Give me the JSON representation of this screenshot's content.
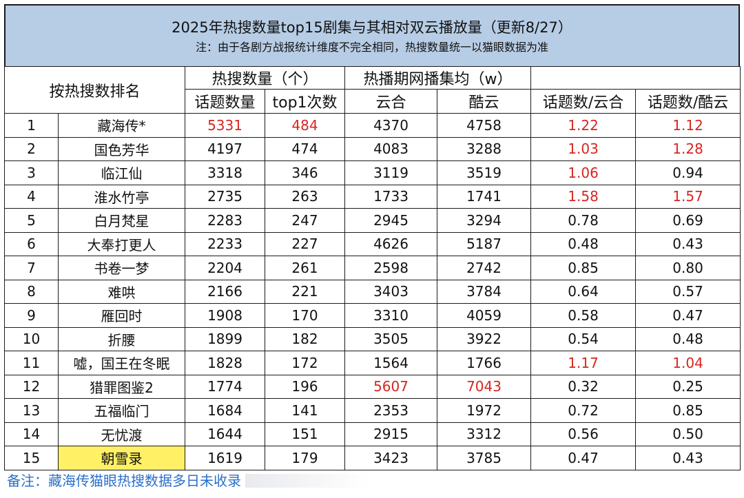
{
  "title": "2025年热搜数量top15剧集与其相对双云播放量（更新8/27）",
  "note": "注：由于各剧方战报统计维度不完全相同，热搜数量统一以猫眼数据为准",
  "headers": {
    "rank_by": "按热搜数排名",
    "hot_search_count": "热搜数量（个）",
    "topic_count": "话题数量",
    "top1_times": "top1次数",
    "avg_per_episode": "热播期网播集均（w）",
    "yunhe": "云合",
    "kuyun": "酷云",
    "ratio_yunhe": "话题数/云合",
    "ratio_kuyun": "话题数/酷云"
  },
  "colors": {
    "title_bg": "#b7cde6",
    "highlight_red": "#d7261e",
    "highlight_yellow": "#fff066",
    "footnote_blue": "#2a6fc9"
  },
  "rows": [
    {
      "rank": "1",
      "name": "藏海传*",
      "topics": "5331",
      "top1": "484",
      "yunhe": "4370",
      "kuyun": "4758",
      "r_yunhe": "1.22",
      "r_kuyun": "1.12",
      "red": [
        "topics",
        "top1",
        "r_yunhe",
        "r_kuyun"
      ],
      "hl": false
    },
    {
      "rank": "2",
      "name": "国色芳华",
      "topics": "4197",
      "top1": "474",
      "yunhe": "4083",
      "kuyun": "3288",
      "r_yunhe": "1.03",
      "r_kuyun": "1.28",
      "red": [
        "r_yunhe",
        "r_kuyun"
      ],
      "hl": false
    },
    {
      "rank": "3",
      "name": "临江仙",
      "topics": "3318",
      "top1": "346",
      "yunhe": "3119",
      "kuyun": "3519",
      "r_yunhe": "1.06",
      "r_kuyun": "0.94",
      "red": [
        "r_yunhe"
      ],
      "hl": false
    },
    {
      "rank": "4",
      "name": "淮水竹亭",
      "topics": "2735",
      "top1": "263",
      "yunhe": "1733",
      "kuyun": "1741",
      "r_yunhe": "1.58",
      "r_kuyun": "1.57",
      "red": [
        "r_yunhe",
        "r_kuyun"
      ],
      "hl": false
    },
    {
      "rank": "5",
      "name": "白月梵星",
      "topics": "2283",
      "top1": "247",
      "yunhe": "2945",
      "kuyun": "3294",
      "r_yunhe": "0.78",
      "r_kuyun": "0.69",
      "red": [],
      "hl": false
    },
    {
      "rank": "6",
      "name": "大奉打更人",
      "topics": "2233",
      "top1": "227",
      "yunhe": "4626",
      "kuyun": "5187",
      "r_yunhe": "0.48",
      "r_kuyun": "0.43",
      "red": [],
      "hl": false
    },
    {
      "rank": "7",
      "name": "书卷一梦",
      "topics": "2204",
      "top1": "261",
      "yunhe": "2598",
      "kuyun": "2742",
      "r_yunhe": "0.85",
      "r_kuyun": "0.80",
      "red": [],
      "hl": false
    },
    {
      "rank": "8",
      "name": "难哄",
      "topics": "2166",
      "top1": "221",
      "yunhe": "3403",
      "kuyun": "3784",
      "r_yunhe": "0.64",
      "r_kuyun": "0.57",
      "red": [],
      "hl": false
    },
    {
      "rank": "9",
      "name": "雁回时",
      "topics": "1908",
      "top1": "170",
      "yunhe": "3310",
      "kuyun": "4059",
      "r_yunhe": "0.58",
      "r_kuyun": "0.47",
      "red": [],
      "hl": false
    },
    {
      "rank": "10",
      "name": "折腰",
      "topics": "1899",
      "top1": "182",
      "yunhe": "3505",
      "kuyun": "3922",
      "r_yunhe": "0.54",
      "r_kuyun": "0.48",
      "red": [],
      "hl": false
    },
    {
      "rank": "11",
      "name": "嘘，国王在冬眠",
      "topics": "1828",
      "top1": "172",
      "yunhe": "1564",
      "kuyun": "1766",
      "r_yunhe": "1.17",
      "r_kuyun": "1.04",
      "red": [
        "r_yunhe",
        "r_kuyun"
      ],
      "hl": false
    },
    {
      "rank": "12",
      "name": "猎罪图鉴2",
      "topics": "1774",
      "top1": "196",
      "yunhe": "5607",
      "kuyun": "7043",
      "r_yunhe": "0.32",
      "r_kuyun": "0.25",
      "red": [
        "yunhe",
        "kuyun"
      ],
      "hl": false
    },
    {
      "rank": "13",
      "name": "五福临门",
      "topics": "1684",
      "top1": "141",
      "yunhe": "2353",
      "kuyun": "1972",
      "r_yunhe": "0.72",
      "r_kuyun": "0.85",
      "red": [],
      "hl": false
    },
    {
      "rank": "14",
      "name": "无忧渡",
      "topics": "1644",
      "top1": "151",
      "yunhe": "2915",
      "kuyun": "3312",
      "r_yunhe": "0.56",
      "r_kuyun": "0.50",
      "red": [],
      "hl": false
    },
    {
      "rank": "15",
      "name": "朝雪录",
      "topics": "1619",
      "top1": "179",
      "yunhe": "3423",
      "kuyun": "3785",
      "r_yunhe": "0.47",
      "r_kuyun": "0.43",
      "red": [],
      "hl": true
    }
  ],
  "footnote": "备注：藏海传猫眼热搜数据多日未收录"
}
